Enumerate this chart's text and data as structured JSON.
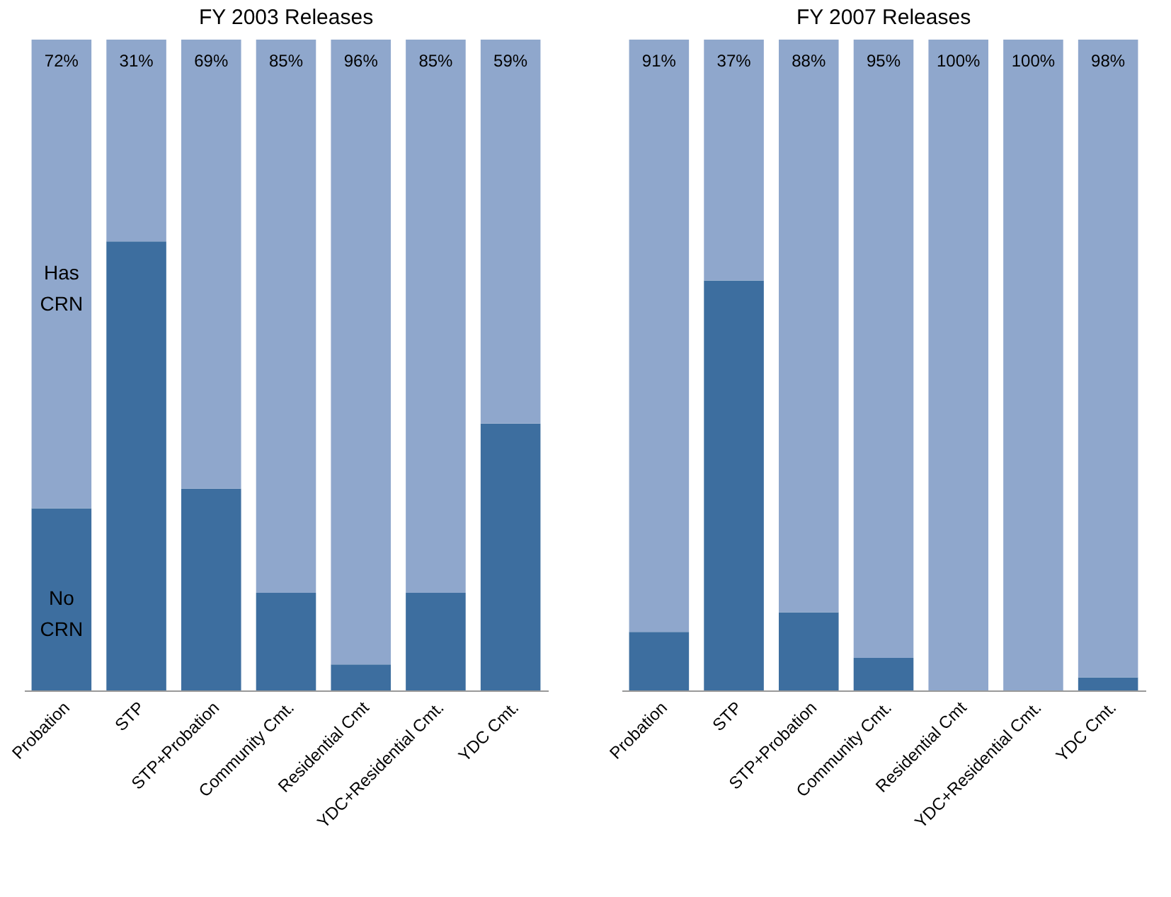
{
  "chart_data": [
    {
      "type": "bar",
      "title": "FY 2003 Releases",
      "categories": [
        "Probation",
        "STP",
        "STP+Probation",
        "Community Cmt.",
        "Residential Cmt",
        "YDC+Residential Cmt.",
        "YDC Cmt."
      ],
      "stacked": true,
      "tick_labels": "x",
      "series": [
        {
          "name": "No CRN",
          "color": "#3d6e9f",
          "values": [
            28,
            69,
            31,
            15,
            4,
            15,
            41
          ]
        },
        {
          "name": "Has CRN",
          "color": "#8fa7cc",
          "values": [
            72,
            31,
            69,
            85,
            96,
            85,
            59
          ],
          "value_labels": [
            "72%",
            "31%",
            "69%",
            "85%",
            "96%",
            "85%",
            "59%"
          ]
        }
      ]
    },
    {
      "type": "bar",
      "title": "FY 2007 Releases",
      "categories": [
        "Probation",
        "STP",
        "STP+Probation",
        "Community Cmt.",
        "Residential Cmt",
        "YDC+Residential Cmt.",
        "YDC Cmt."
      ],
      "stacked": true,
      "tick_labels": "x",
      "series": [
        {
          "color": "#3d6e9f",
          "values": [
            9,
            63,
            12,
            5,
            0,
            0,
            2
          ]
        },
        {
          "color": "#8fa7cc",
          "values": [
            91,
            37,
            88,
            95,
            100,
            100,
            98
          ],
          "value_labels": [
            "91%",
            "37%",
            "88%",
            "95%",
            "100%",
            "100%",
            "98%"
          ]
        }
      ]
    }
  ]
}
